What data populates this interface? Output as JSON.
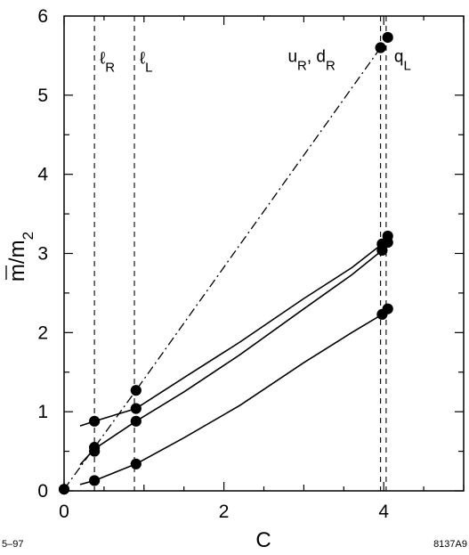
{
  "chart_data": {
    "type": "line",
    "title": "",
    "xlabel": "C",
    "ylabel": "m/m2",
    "ylabel_parts": {
      "main": "m",
      "over": "/m",
      "sub": "2"
    },
    "xlim": [
      0,
      5
    ],
    "ylim": [
      0,
      6
    ],
    "x_ticks": [
      0,
      2,
      4
    ],
    "x_tick_labels": [
      "0",
      "2",
      "4"
    ],
    "y_ticks": [
      0,
      1,
      2,
      3,
      4,
      5,
      6
    ],
    "y_tick_labels": [
      "0",
      "1",
      "2",
      "3",
      "4",
      "5",
      "6"
    ],
    "grid": false,
    "vertical_lines": [
      {
        "x": 0.38,
        "label_main": "ℓ",
        "label_sub": "R",
        "label_y": 5.4
      },
      {
        "x": 0.88,
        "label_main": "ℓ",
        "label_sub": "L",
        "label_y": 5.4
      },
      {
        "x": 3.96,
        "label_main": "",
        "label_sub": "",
        "label_y": 5.4
      },
      {
        "x": 4.03,
        "label_main": "",
        "label_sub": "",
        "label_y": 5.4
      }
    ],
    "top_labels": [
      {
        "text_parts": [
          [
            "u",
            "R"
          ],
          [
            "d",
            "R"
          ]
        ],
        "separator": ", ",
        "x": 2.8,
        "y": 5.42
      },
      {
        "text_parts": [
          [
            "q",
            "L"
          ]
        ],
        "separator": "",
        "x": 4.13,
        "y": 5.42
      }
    ],
    "series": [
      {
        "style": "dash-dot",
        "x": [
          0,
          0.9,
          3.96,
          4.05
        ],
        "y": [
          0.02,
          1.27,
          5.6,
          5.73
        ],
        "points": [
          [
            0,
            0.02
          ],
          [
            0.9,
            1.27
          ],
          [
            3.96,
            5.6
          ],
          [
            4.05,
            5.73
          ]
        ]
      },
      {
        "style": "solid",
        "x": [
          0.2,
          0.38,
          0.9,
          1.5,
          2.2,
          3,
          3.6,
          3.98
        ],
        "y": [
          0.82,
          0.88,
          1.04,
          1.43,
          1.88,
          2.43,
          2.82,
          3.12
        ],
        "points": [
          [
            0.38,
            0.88
          ],
          [
            0.9,
            1.04
          ],
          [
            3.98,
            3.12
          ],
          [
            4.05,
            3.22
          ]
        ]
      },
      {
        "style": "solid",
        "x": [
          0.2,
          0.38,
          0.9,
          1.5,
          2.2,
          3,
          3.6,
          3.98
        ],
        "y": [
          0.33,
          0.53,
          0.88,
          1.25,
          1.72,
          2.3,
          2.73,
          3.04
        ],
        "points": [
          [
            0.38,
            0.5
          ],
          [
            0.38,
            0.55
          ],
          [
            0.9,
            0.88
          ],
          [
            3.98,
            3.04
          ],
          [
            4.05,
            3.14
          ]
        ]
      },
      {
        "style": "solid",
        "x": [
          0.2,
          0.38,
          0.9,
          1.5,
          2.2,
          3,
          3.6,
          3.98
        ],
        "y": [
          0.08,
          0.13,
          0.34,
          0.67,
          1.08,
          1.62,
          2.0,
          2.23
        ],
        "points": [
          [
            0.38,
            0.13
          ],
          [
            0.9,
            0.34
          ],
          [
            3.98,
            2.23
          ],
          [
            4.05,
            2.3
          ]
        ]
      }
    ],
    "footnotes": {
      "left": "5–97",
      "right": "8137A9"
    }
  }
}
